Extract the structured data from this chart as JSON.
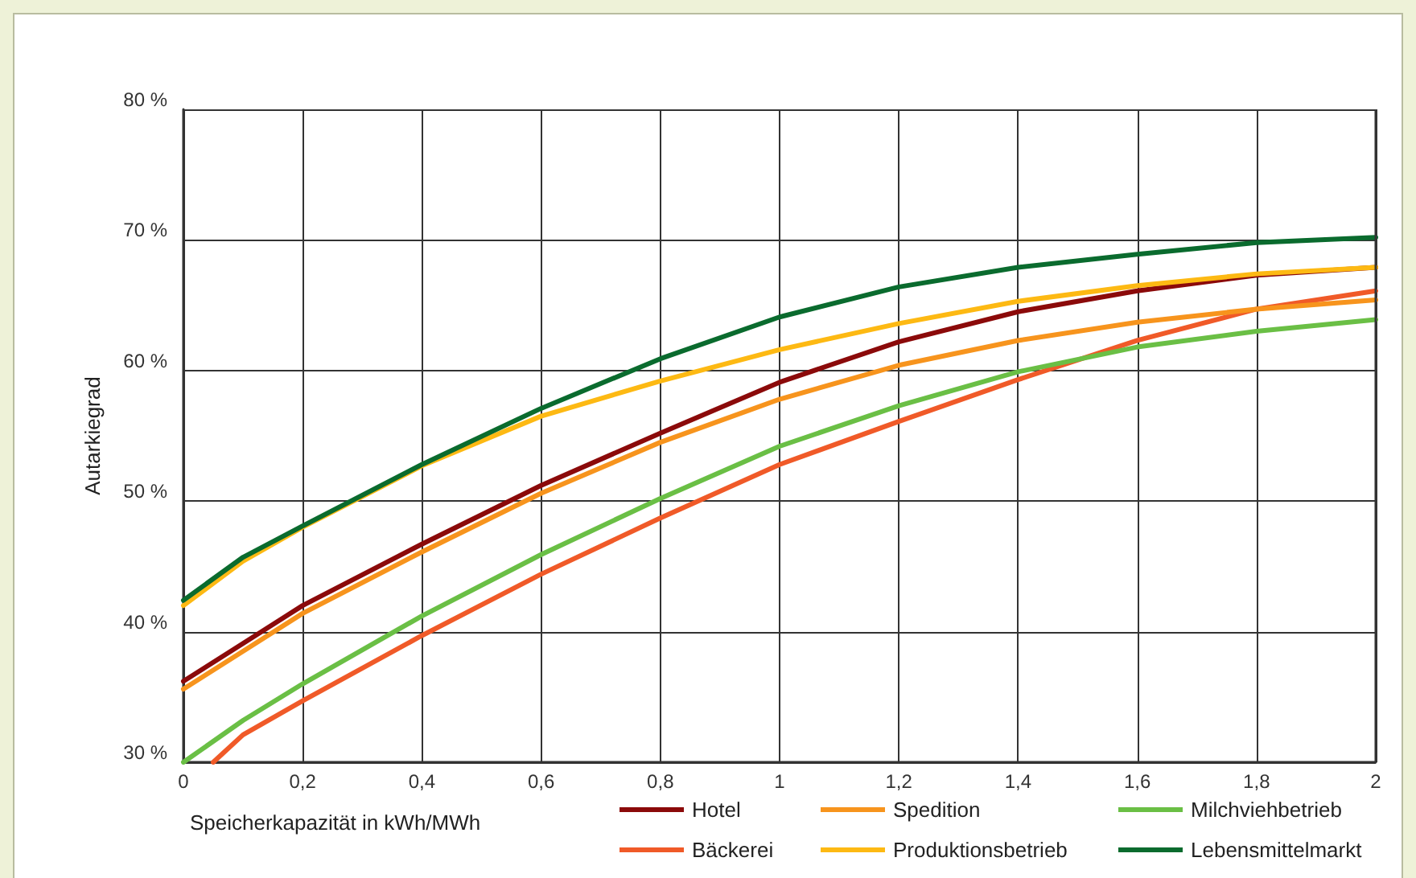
{
  "chart_data": {
    "type": "line",
    "xlabel": "Speicherkapazität in kWh/MWh",
    "ylabel": "Autarkiegrad",
    "x": [
      0,
      0.1,
      0.2,
      0.4,
      0.6,
      0.8,
      1,
      1.2,
      1.4,
      1.6,
      1.8,
      2
    ],
    "series": [
      {
        "name": "Hotel",
        "color": "#8b0a0a",
        "values": [
          36.2,
          39.1,
          42.0,
          46.7,
          51.2,
          55.2,
          59.1,
          62.2,
          64.5,
          66.1,
          67.3,
          67.9
        ]
      },
      {
        "name": "Bäckerei",
        "color": "#f05a28",
        "x": [
          0.05,
          0.1,
          0.2,
          0.4,
          0.6,
          0.8,
          1,
          1.2,
          1.4,
          1.6,
          1.8,
          2
        ],
        "values": [
          30.0,
          32.1,
          34.7,
          39.7,
          44.4,
          48.7,
          52.8,
          56.1,
          59.3,
          62.3,
          64.7,
          66.1
        ]
      },
      {
        "name": "Spedition",
        "color": "#f7941d",
        "values": [
          35.6,
          38.5,
          41.4,
          46.1,
          50.6,
          54.5,
          57.8,
          60.4,
          62.3,
          63.7,
          64.7,
          65.4
        ]
      },
      {
        "name": "Produktionsbetrieb",
        "color": "#fdb913",
        "values": [
          42.0,
          45.4,
          48.0,
          52.7,
          56.5,
          59.2,
          61.6,
          63.6,
          65.3,
          66.5,
          67.4,
          67.9
        ]
      },
      {
        "name": "Milchviehbetrieb",
        "color": "#6abf45",
        "values": [
          30.0,
          33.2,
          36.0,
          41.2,
          45.9,
          50.2,
          54.2,
          57.3,
          59.9,
          61.8,
          63.0,
          63.9
        ]
      },
      {
        "name": "Lebensmittelmarkt",
        "color": "#0a6b2e",
        "values": [
          42.4,
          45.7,
          48.1,
          52.8,
          57.1,
          60.9,
          64.1,
          66.4,
          67.9,
          68.9,
          69.8,
          70.2
        ]
      }
    ],
    "xlim": [
      0,
      2
    ],
    "xticks": [
      0,
      {
        "value": 0.2,
        "label": "0,2"
      },
      {
        "value": 0.4,
        "label": "0,4"
      },
      {
        "value": 0.6,
        "label": "0,6"
      },
      {
        "value": 0.8,
        "label": "0,8"
      },
      1,
      {
        "value": 1.2,
        "label": "1,2"
      },
      {
        "value": 1.4,
        "label": "1,4"
      },
      {
        "value": 1.6,
        "label": "1,6"
      },
      {
        "value": 1.8,
        "label": "1,8"
      },
      2
    ],
    "ylim": [
      30,
      80
    ],
    "yticks": [
      {
        "value": 30,
        "label": "30 %"
      },
      {
        "value": 40,
        "label": "40 %"
      },
      {
        "value": 50,
        "label": "50 %"
      },
      {
        "value": 60,
        "label": "60 %"
      },
      {
        "value": 70,
        "label": "70 %"
      },
      {
        "value": 80,
        "label": "80 %"
      }
    ],
    "grid": true,
    "legend": "bottom right",
    "marker": "none",
    "line_style": "solid"
  }
}
